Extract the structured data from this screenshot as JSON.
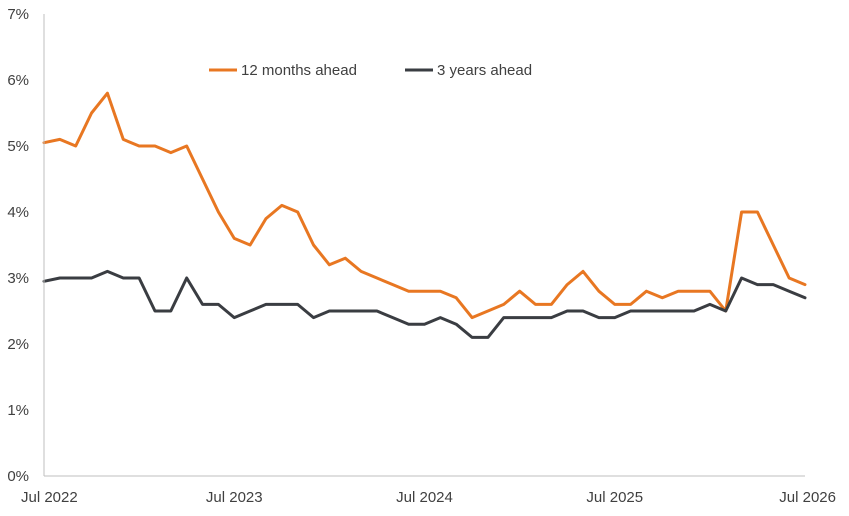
{
  "chart_data": {
    "type": "line",
    "title": "",
    "xlabel": "",
    "ylabel": "",
    "x_ticks": [
      "Jul 2022",
      "Jul 2023",
      "Jul 2024",
      "Jul 2025",
      "Jul 2026"
    ],
    "y_ticks": [
      "0%",
      "1%",
      "2%",
      "3%",
      "4%",
      "5%",
      "6%",
      "7%"
    ],
    "ylim": [
      0,
      7
    ],
    "xlim": [
      "Jul 2022",
      "Jul 2026"
    ],
    "grid": false,
    "legend_position": "top-center",
    "series": [
      {
        "name": "12 months ahead",
        "color": "#E87722",
        "points": [
          [
            "2022-07",
            5.05
          ],
          [
            "2022-08",
            5.1
          ],
          [
            "2022-09",
            5.0
          ],
          [
            "2022-10",
            5.5
          ],
          [
            "2022-11",
            5.8
          ],
          [
            "2022-12",
            5.1
          ],
          [
            "2023-01",
            5.0
          ],
          [
            "2023-02",
            5.0
          ],
          [
            "2023-03",
            4.9
          ],
          [
            "2023-04",
            5.0
          ],
          [
            "2023-05",
            4.5
          ],
          [
            "2023-06",
            4.0
          ],
          [
            "2023-07",
            3.6
          ],
          [
            "2023-08",
            3.5
          ],
          [
            "2023-09",
            3.9
          ],
          [
            "2023-10",
            4.1
          ],
          [
            "2023-11",
            4.0
          ],
          [
            "2023-12",
            3.5
          ],
          [
            "2024-01",
            3.2
          ],
          [
            "2024-02",
            3.3
          ],
          [
            "2024-03",
            3.1
          ],
          [
            "2024-04",
            3.0
          ],
          [
            "2024-05",
            2.9
          ],
          [
            "2024-06",
            2.8
          ],
          [
            "2024-07",
            2.8
          ],
          [
            "2024-08",
            2.8
          ],
          [
            "2024-09",
            2.7
          ],
          [
            "2024-10",
            2.4
          ],
          [
            "2024-11",
            2.5
          ],
          [
            "2024-12",
            2.6
          ],
          [
            "2025-01",
            2.8
          ],
          [
            "2025-02",
            2.6
          ],
          [
            "2025-03",
            2.6
          ],
          [
            "2025-04",
            2.9
          ],
          [
            "2025-05",
            3.1
          ],
          [
            "2025-06",
            2.8
          ],
          [
            "2025-07",
            2.6
          ],
          [
            "2025-08",
            2.6
          ],
          [
            "2025-09",
            2.8
          ],
          [
            "2025-10",
            2.7
          ],
          [
            "2025-11",
            2.8
          ],
          [
            "2025-12",
            2.8
          ],
          [
            "2026-01",
            2.8
          ],
          [
            "2026-02",
            2.5
          ],
          [
            "2026-03",
            4.0
          ],
          [
            "2026-04",
            4.0
          ],
          [
            "2026-05",
            3.5
          ],
          [
            "2026-06",
            3.0
          ],
          [
            "2026-07",
            2.9
          ]
        ]
      },
      {
        "name": "3 years ahead",
        "color": "#3A3D42",
        "points": [
          [
            "2022-07",
            2.95
          ],
          [
            "2022-08",
            3.0
          ],
          [
            "2022-09",
            3.0
          ],
          [
            "2022-10",
            3.0
          ],
          [
            "2022-11",
            3.1
          ],
          [
            "2022-12",
            3.0
          ],
          [
            "2023-01",
            3.0
          ],
          [
            "2023-02",
            2.5
          ],
          [
            "2023-03",
            2.5
          ],
          [
            "2023-04",
            3.0
          ],
          [
            "2023-05",
            2.6
          ],
          [
            "2023-06",
            2.6
          ],
          [
            "2023-07",
            2.4
          ],
          [
            "2023-08",
            2.5
          ],
          [
            "2023-09",
            2.6
          ],
          [
            "2023-10",
            2.6
          ],
          [
            "2023-11",
            2.6
          ],
          [
            "2023-12",
            2.4
          ],
          [
            "2024-01",
            2.5
          ],
          [
            "2024-02",
            2.5
          ],
          [
            "2024-03",
            2.5
          ],
          [
            "2024-04",
            2.5
          ],
          [
            "2024-05",
            2.4
          ],
          [
            "2024-06",
            2.3
          ],
          [
            "2024-07",
            2.3
          ],
          [
            "2024-08",
            2.4
          ],
          [
            "2024-09",
            2.3
          ],
          [
            "2024-10",
            2.1
          ],
          [
            "2024-11",
            2.1
          ],
          [
            "2024-12",
            2.4
          ],
          [
            "2025-01",
            2.4
          ],
          [
            "2025-02",
            2.4
          ],
          [
            "2025-03",
            2.4
          ],
          [
            "2025-04",
            2.5
          ],
          [
            "2025-05",
            2.5
          ],
          [
            "2025-06",
            2.4
          ],
          [
            "2025-07",
            2.4
          ],
          [
            "2025-08",
            2.5
          ],
          [
            "2025-09",
            2.5
          ],
          [
            "2025-10",
            2.5
          ],
          [
            "2025-11",
            2.5
          ],
          [
            "2025-12",
            2.5
          ],
          [
            "2026-01",
            2.6
          ],
          [
            "2026-02",
            2.5
          ],
          [
            "2026-03",
            3.0
          ],
          [
            "2026-04",
            2.9
          ],
          [
            "2026-05",
            2.9
          ],
          [
            "2026-06",
            2.8
          ],
          [
            "2026-07",
            2.7
          ]
        ]
      }
    ]
  }
}
